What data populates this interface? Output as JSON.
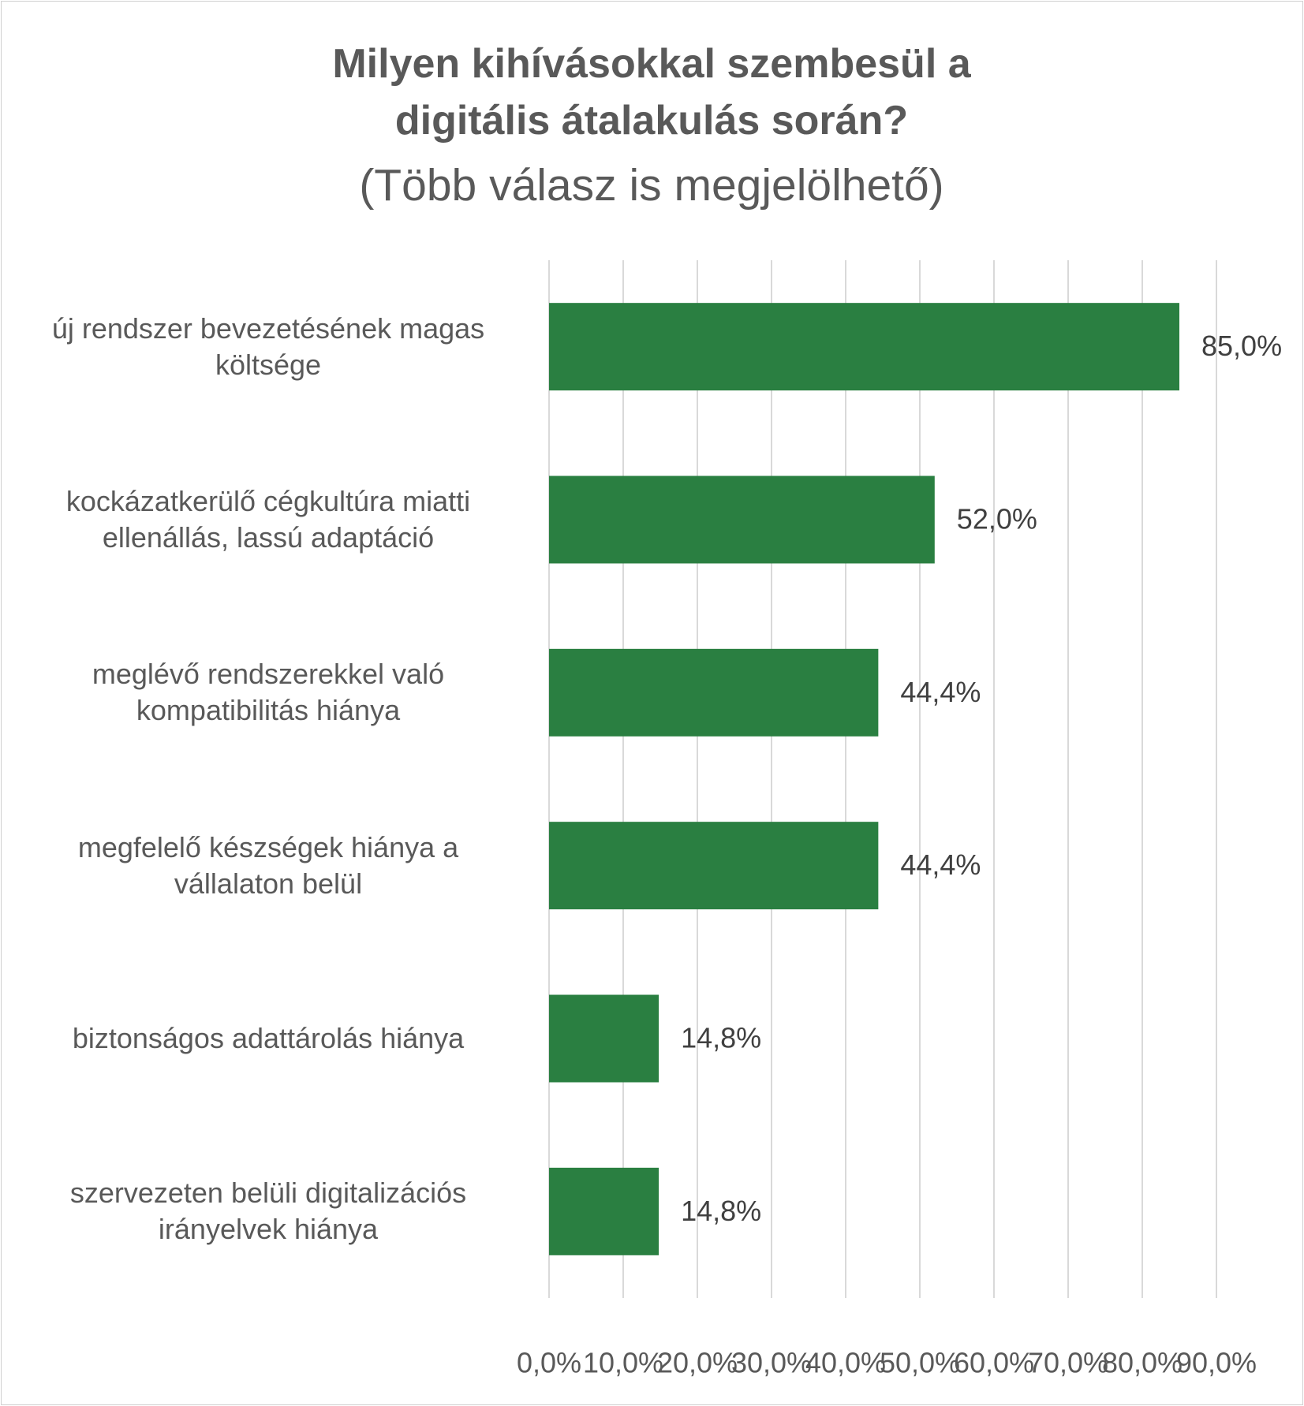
{
  "chart_data": {
    "type": "hbar",
    "title": "Milyen kihívásokkal szembesül a digitális átalakulás során?",
    "subtitle": "(Több válasz is megjelölhető)",
    "categories": [
      "új rendszer bevezetésének magas költsége",
      "kockázatkerülő cégkultúra miatti ellenállás, lassú adaptáció",
      "meglévő rendszerekkel való kompatibilitás hiánya",
      "megfelelő készségek hiánya a vállalaton belül",
      "biztonságos adattárolás hiánya",
      "szervezeten belüli digitalizációs irányelvek hiánya"
    ],
    "values": [
      85.0,
      52.0,
      44.4,
      44.4,
      14.8,
      14.8
    ],
    "value_labels": [
      "85,0%",
      "52,0%",
      "44,4%",
      "44,4%",
      "14,8%",
      "14,8%"
    ],
    "color": "#2a7f41",
    "xlim": [
      0,
      90
    ],
    "xticks": [
      {
        "value": 0,
        "label": "0,0%"
      },
      {
        "value": 10,
        "label": "10,0%"
      },
      {
        "value": 20,
        "label": "20,0%"
      },
      {
        "value": 30,
        "label": "30,0%"
      },
      {
        "value": 40,
        "label": "40,0%"
      },
      {
        "value": 50,
        "label": "50,0%"
      },
      {
        "value": 60,
        "label": "60,0%"
      },
      {
        "value": 70,
        "label": "70,0%"
      },
      {
        "value": 80,
        "label": "80,0%"
      },
      {
        "value": 90,
        "label": "90,0%"
      }
    ],
    "grid": true
  }
}
